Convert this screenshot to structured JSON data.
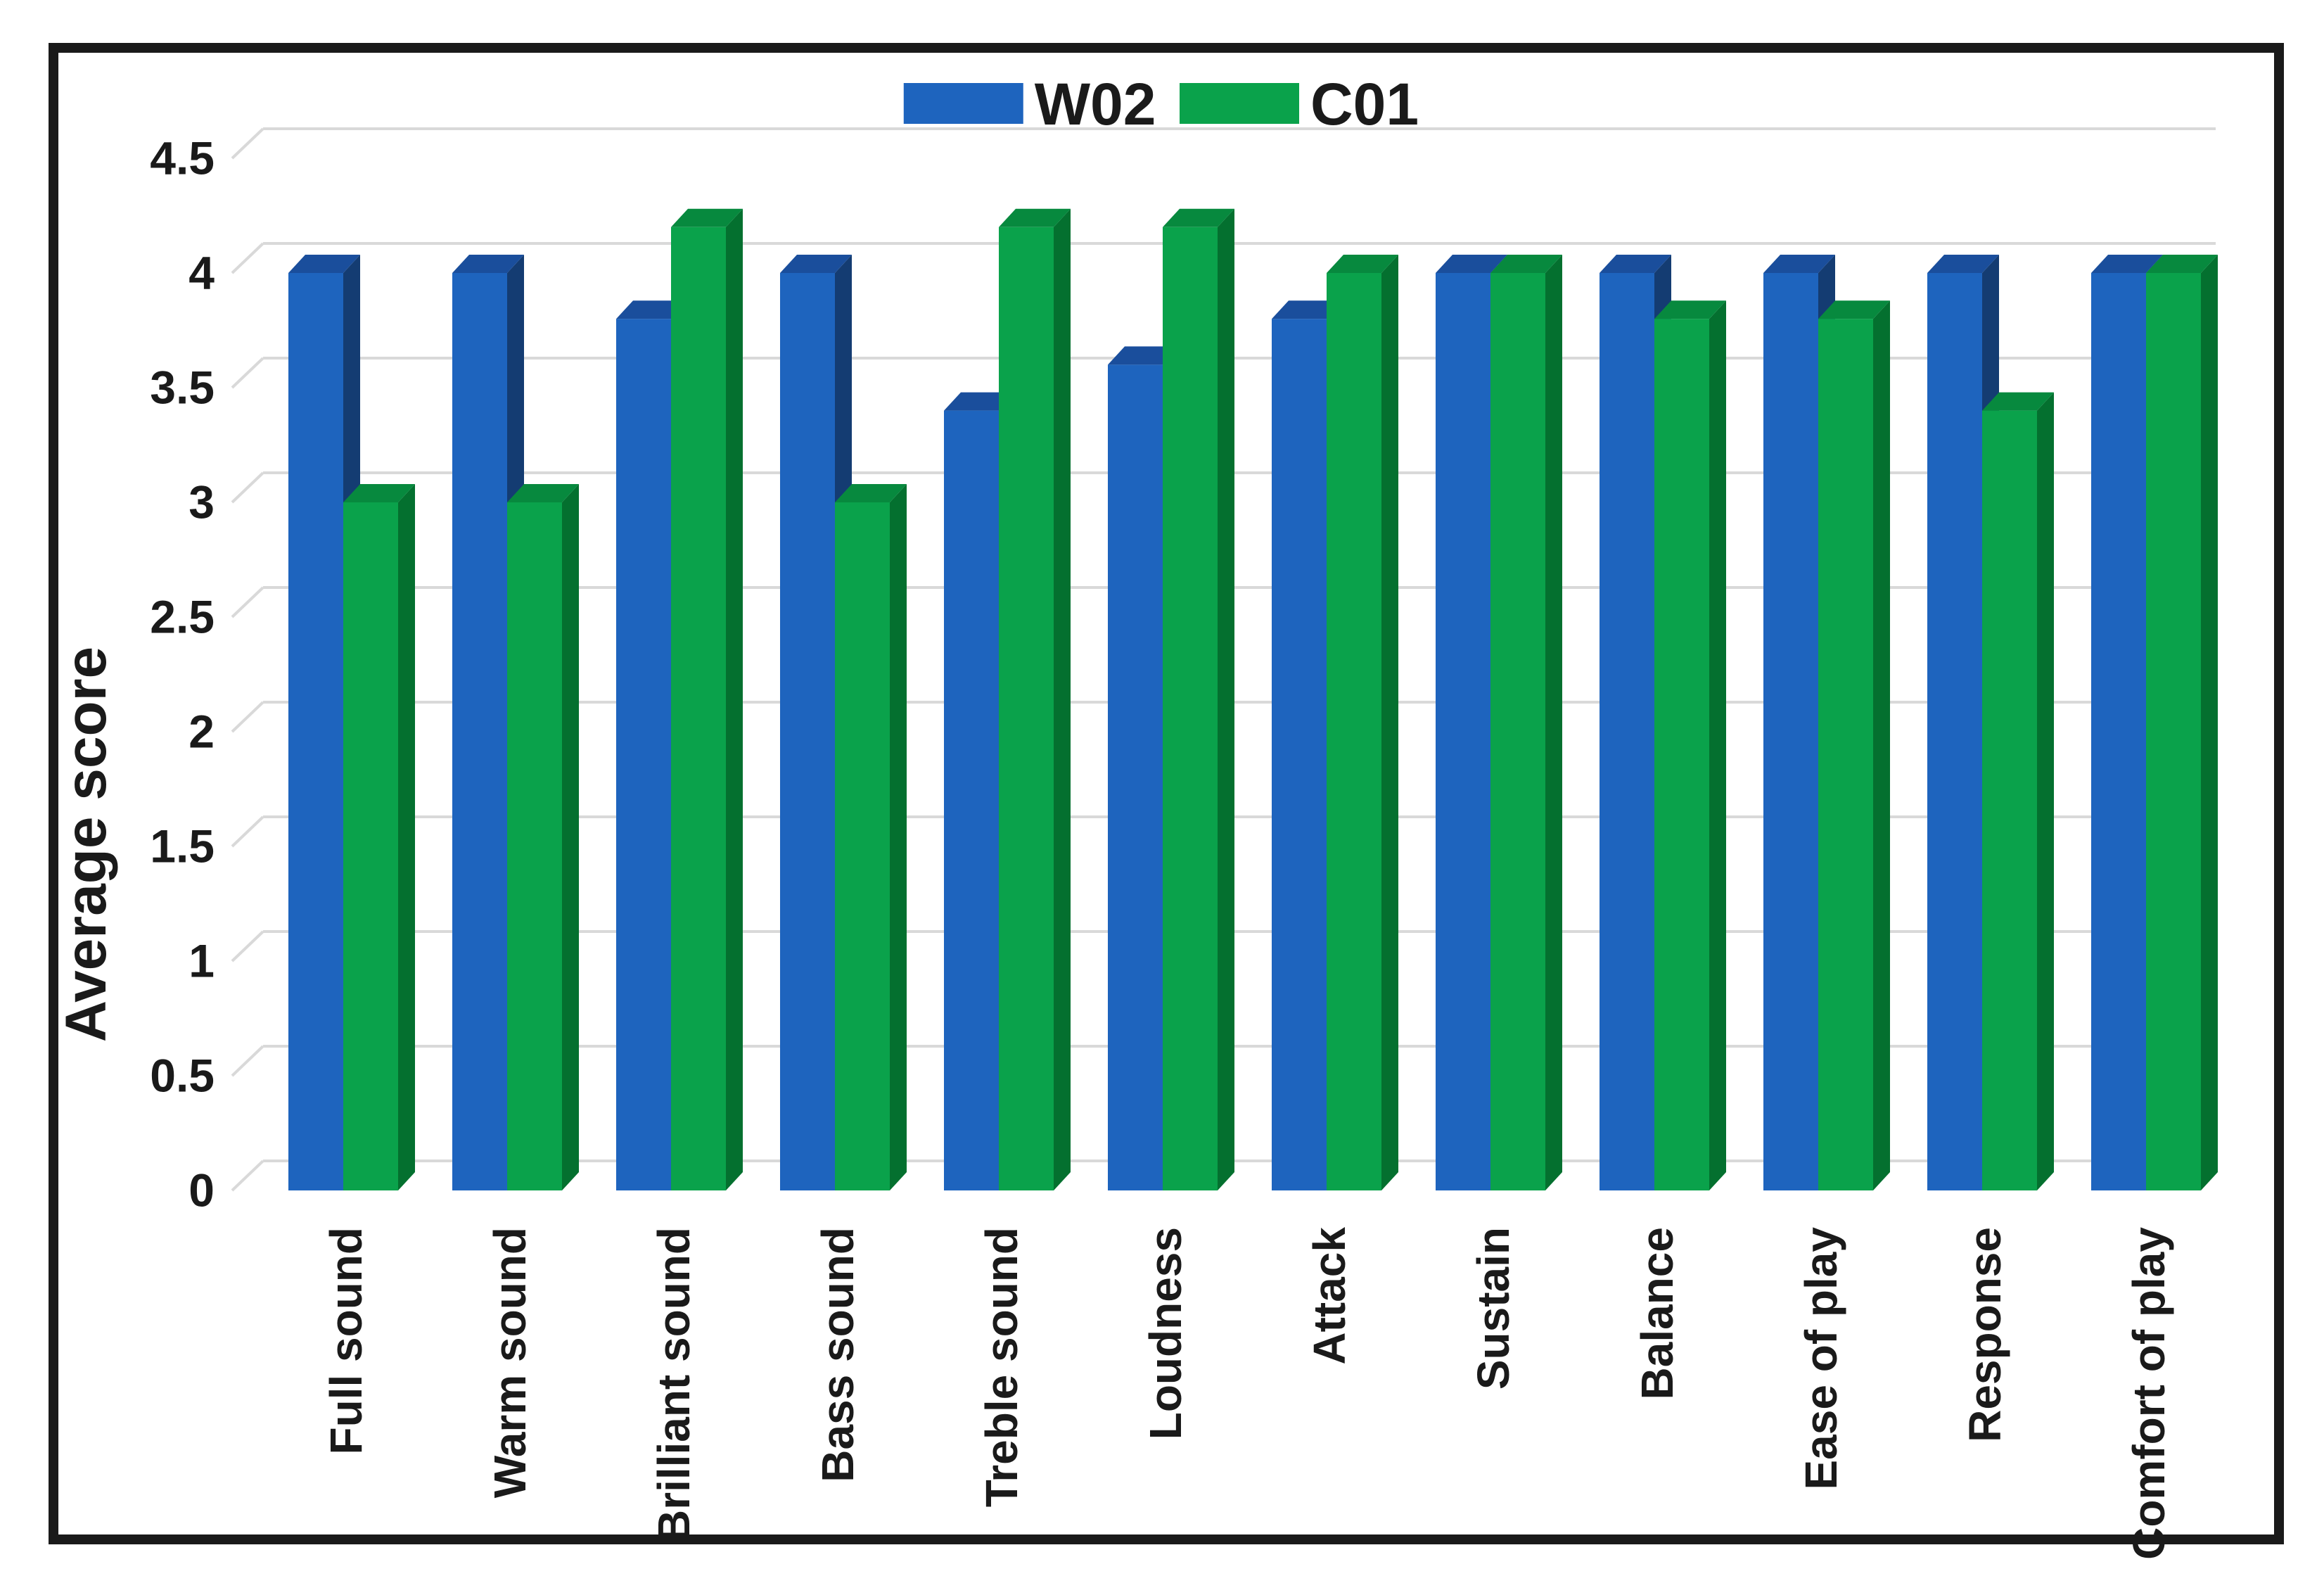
{
  "figure": {
    "background": "#ffffff",
    "frame_color": "#1a1a1a",
    "text_color": "#1a1a1a",
    "gridline_color": "#d9d9d9"
  },
  "legend": {
    "position": "top-center",
    "items": [
      {
        "label": "W02",
        "color": "#1e64be"
      },
      {
        "label": "C01",
        "color": "#0aa24b"
      }
    ]
  },
  "y_axis": {
    "title": "Average score",
    "min": 0,
    "max": 4.5,
    "tick_step": 0.5,
    "tick_labels": [
      "0",
      "0.5",
      "1",
      "1.5",
      "2",
      "2.5",
      "3",
      "3.5",
      "4",
      "4.5"
    ]
  },
  "chart_data": {
    "type": "bar",
    "style": "3d-grouped-columns",
    "title": "",
    "xlabel": "",
    "ylabel": "Average score",
    "ylim": [
      0,
      4.5
    ],
    "y_tick_step": 0.5,
    "grid": true,
    "legend_position": "top-center",
    "categories": [
      "Full sound",
      "Warm sound",
      "Brilliant sound",
      "Bass sound",
      "Treble sound",
      "Loudness",
      "Attack",
      "Sustain",
      "Balance",
      "Ease of play",
      "Response",
      "Comfort of play"
    ],
    "series": [
      {
        "name": "W02",
        "color": "#1e64be",
        "side_color": "#143c72",
        "top_color": "#1a4e9c",
        "values": [
          4,
          4,
          3.8,
          4,
          3.4,
          3.6,
          3.8,
          4,
          4,
          4,
          4,
          4
        ]
      },
      {
        "name": "C01",
        "color": "#0aa24b",
        "side_color": "#04702f",
        "top_color": "#07893e",
        "values": [
          3,
          3,
          4.2,
          3,
          4.2,
          4.2,
          4,
          4,
          3.8,
          3.8,
          3.4,
          4
        ]
      }
    ]
  }
}
